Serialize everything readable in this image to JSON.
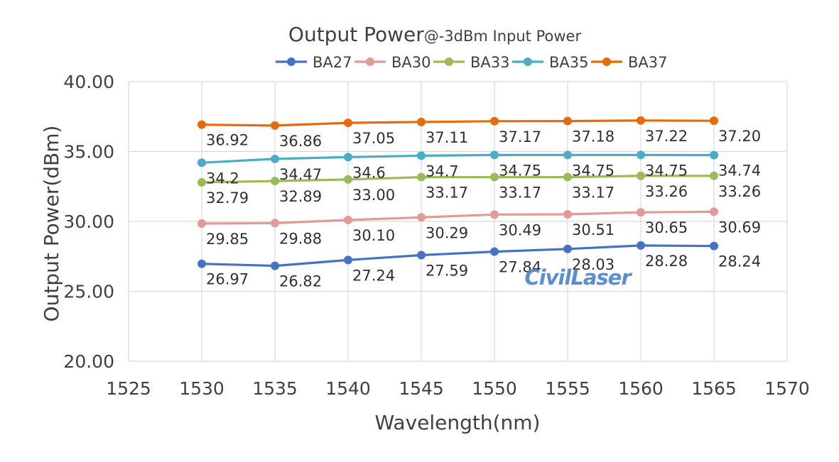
{
  "chart_data": {
    "type": "line",
    "title": "Output Power",
    "subtitle": "@-3dBm Input Power",
    "xlabel": "Wavelength(nm)",
    "ylabel": "Output Power(dBm)",
    "xlim": [
      1525,
      1570
    ],
    "ylim": [
      20,
      40
    ],
    "x_ticks": [
      "1525",
      "1530",
      "1535",
      "1540",
      "1545",
      "1550",
      "1555",
      "1560",
      "1565",
      "1570"
    ],
    "y_ticks": [
      "20.00",
      "25.00",
      "30.00",
      "35.00",
      "40.00"
    ],
    "grid": true,
    "legend_position": "top",
    "x": [
      1530,
      1535,
      1540,
      1545,
      1550,
      1555,
      1560,
      1565
    ],
    "series": [
      {
        "name": "BA27",
        "color": "#4472c4",
        "values": [
          26.97,
          26.82,
          27.24,
          27.59,
          27.84,
          28.03,
          28.28,
          28.24
        ],
        "labels": [
          "26.97",
          "26.82",
          "27.24",
          "27.59",
          "27.84",
          "28.03",
          "28.28",
          "28.24"
        ]
      },
      {
        "name": "BA30",
        "color": "#e19a96",
        "values": [
          29.85,
          29.88,
          30.1,
          30.29,
          30.49,
          30.51,
          30.65,
          30.69
        ],
        "labels": [
          "29.85",
          "29.88",
          "30.10",
          "30.29",
          "30.49",
          "30.51",
          "30.65",
          "30.69"
        ]
      },
      {
        "name": "BA33",
        "color": "#9bbb59",
        "values": [
          32.79,
          32.89,
          33.0,
          33.17,
          33.17,
          33.17,
          33.26,
          33.26
        ],
        "labels": [
          "32.79",
          "32.89",
          "33.00",
          "33.17",
          "33.17",
          "33.17",
          "33.26",
          "33.26"
        ]
      },
      {
        "name": "BA35",
        "color": "#4bacc6",
        "values": [
          34.2,
          34.47,
          34.6,
          34.7,
          34.75,
          34.75,
          34.75,
          34.74
        ],
        "labels": [
          "34.2",
          "34.47",
          "34.6",
          "34.7",
          "34.75",
          "34.75",
          "34.75",
          "34.74"
        ]
      },
      {
        "name": "BA37",
        "color": "#e46c0a",
        "values": [
          36.92,
          36.86,
          37.05,
          37.11,
          37.17,
          37.18,
          37.22,
          37.2
        ],
        "labels": [
          "36.92",
          "36.86",
          "37.05",
          "37.11",
          "37.17",
          "37.18",
          "37.22",
          "37.20"
        ]
      }
    ]
  },
  "watermark": "CivilLaser"
}
